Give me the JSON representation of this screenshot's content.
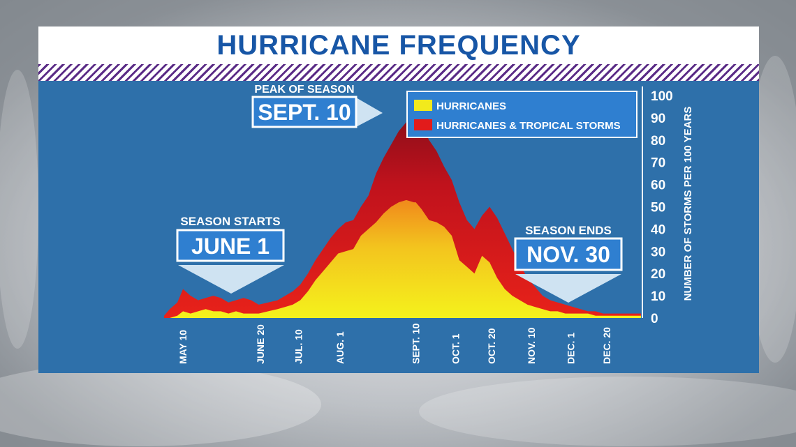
{
  "header": {
    "title": "HURRICANE FREQUENCY"
  },
  "colors": {
    "panel": "#2e70aa",
    "title": "#1756a6",
    "hurricanes": "#f2ea1c",
    "storms": "#e21b1b",
    "callout": "#2f7fd0"
  },
  "annotations": {
    "peak": {
      "caption": "PEAK OF SEASON",
      "date": "SEPT. 10"
    },
    "start": {
      "caption": "SEASON STARTS",
      "date": "JUNE 1"
    },
    "end": {
      "caption": "SEASON ENDS",
      "date": "NOV. 30"
    }
  },
  "chart_data": {
    "type": "area",
    "title": "HURRICANE FREQUENCY",
    "xlabel": "",
    "ylabel": "NUMBER OF STORMS PER 100 YEARS",
    "ylim": [
      0,
      100
    ],
    "yticks": [
      0,
      10,
      20,
      30,
      40,
      50,
      60,
      70,
      80,
      90,
      100
    ],
    "y_axis_position": "right",
    "grid": false,
    "legend": "top-right",
    "x_tick_labels": [
      {
        "label": "MAY 10",
        "day": 10
      },
      {
        "label": "JUNE 20",
        "day": 51
      },
      {
        "label": "JUL. 10",
        "day": 71
      },
      {
        "label": "AUG. 1",
        "day": 93
      },
      {
        "label": "SEPT. 10",
        "day": 133
      },
      {
        "label": "OCT. 1",
        "day": 154
      },
      {
        "label": "OCT. 20",
        "day": 173
      },
      {
        "label": "NOV. 10",
        "day": 194
      },
      {
        "label": "DEC. 1",
        "day": 215
      },
      {
        "label": "DEC. 20",
        "day": 234
      }
    ],
    "x": [
      0,
      3,
      7,
      10,
      14,
      18,
      22,
      26,
      30,
      34,
      38,
      42,
      46,
      50,
      55,
      60,
      64,
      68,
      72,
      76,
      80,
      84,
      88,
      92,
      96,
      100,
      104,
      108,
      112,
      116,
      120,
      124,
      128,
      132,
      133,
      136,
      140,
      144,
      148,
      152,
      156,
      160,
      164,
      168,
      172,
      176,
      180,
      184,
      188,
      192,
      196,
      200,
      204,
      208,
      212,
      216,
      220,
      224,
      228,
      232,
      236,
      240,
      244,
      248,
      252
    ],
    "series": [
      {
        "name": "HURRICANES",
        "values": [
          0,
          0,
          1,
          3,
          2,
          3,
          4,
          3,
          3,
          2,
          3,
          2,
          2,
          2,
          3,
          4,
          5,
          6,
          8,
          12,
          17,
          21,
          25,
          29,
          30,
          31,
          37,
          40,
          43,
          47,
          50,
          52,
          53,
          52,
          52,
          49,
          44,
          43,
          41,
          37,
          26,
          23,
          20,
          28,
          25,
          18,
          13,
          10,
          8,
          6,
          5,
          4,
          3,
          3,
          2,
          2,
          2,
          2,
          1,
          1,
          1,
          1,
          1,
          1,
          1
        ]
      },
      {
        "name": "HURRICANES & TROPICAL STORMS",
        "values": [
          1,
          4,
          7,
          13,
          10,
          8,
          9,
          10,
          9,
          7,
          8,
          9,
          8,
          6,
          7,
          8,
          10,
          12,
          15,
          20,
          26,
          31,
          36,
          40,
          43,
          44,
          50,
          55,
          65,
          72,
          78,
          84,
          88,
          92,
          92,
          87,
          80,
          75,
          68,
          62,
          52,
          44,
          40,
          46,
          50,
          45,
          38,
          31,
          24,
          18,
          14,
          10,
          8,
          7,
          6,
          5,
          4,
          3,
          3,
          2,
          2,
          2,
          2,
          2,
          2
        ]
      }
    ]
  }
}
